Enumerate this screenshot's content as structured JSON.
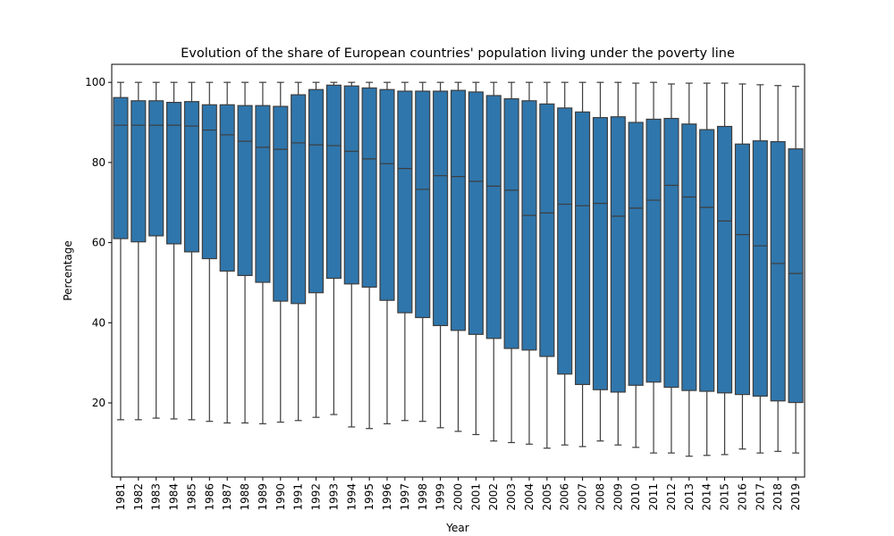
{
  "chart_data": {
    "type": "boxplot",
    "title": "Evolution of the share of European countries' population living under the poverty line",
    "xlabel": "Year",
    "ylabel": "Percentage",
    "ylim": [
      1.5,
      104.5
    ],
    "yticks": [
      20,
      40,
      60,
      80,
      100
    ],
    "grid": false,
    "box_color": "#2f76ac",
    "line_color": "#3d3d3d",
    "categories": [
      "1981",
      "1982",
      "1983",
      "1984",
      "1985",
      "1986",
      "1987",
      "1988",
      "1989",
      "1990",
      "1991",
      "1992",
      "1993",
      "1994",
      "1995",
      "1996",
      "1997",
      "1998",
      "1999",
      "2000",
      "2001",
      "2002",
      "2003",
      "2004",
      "2005",
      "2006",
      "2007",
      "2008",
      "2009",
      "2010",
      "2011",
      "2012",
      "2013",
      "2014",
      "2015",
      "2016",
      "2017",
      "2018",
      "2019"
    ],
    "boxes": [
      {
        "min": 15.8,
        "q1": 61.0,
        "median": 89.3,
        "q3": 96.2,
        "max": 100.0
      },
      {
        "min": 15.8,
        "q1": 60.2,
        "median": 89.3,
        "q3": 95.4,
        "max": 100.0
      },
      {
        "min": 16.2,
        "q1": 61.7,
        "median": 89.3,
        "q3": 95.4,
        "max": 100.0
      },
      {
        "min": 16.0,
        "q1": 59.7,
        "median": 89.3,
        "q3": 95.0,
        "max": 100.0
      },
      {
        "min": 15.8,
        "q1": 57.7,
        "median": 89.1,
        "q3": 95.2,
        "max": 100.0
      },
      {
        "min": 15.4,
        "q1": 56.0,
        "median": 88.1,
        "q3": 94.4,
        "max": 100.0
      },
      {
        "min": 15.0,
        "q1": 52.9,
        "median": 86.9,
        "q3": 94.4,
        "max": 100.0
      },
      {
        "min": 15.0,
        "q1": 51.8,
        "median": 85.3,
        "q3": 94.2,
        "max": 100.0
      },
      {
        "min": 14.8,
        "q1": 50.1,
        "median": 83.8,
        "q3": 94.2,
        "max": 100.0
      },
      {
        "min": 15.2,
        "q1": 45.4,
        "median": 83.3,
        "q3": 94.0,
        "max": 100.0
      },
      {
        "min": 15.6,
        "q1": 44.8,
        "median": 84.9,
        "q3": 96.9,
        "max": 100.0
      },
      {
        "min": 16.4,
        "q1": 47.5,
        "median": 84.4,
        "q3": 98.2,
        "max": 100.0
      },
      {
        "min": 17.1,
        "q1": 51.1,
        "median": 84.2,
        "q3": 99.3,
        "max": 100.0
      },
      {
        "min": 14.0,
        "q1": 49.7,
        "median": 82.8,
        "q3": 99.1,
        "max": 100.0
      },
      {
        "min": 13.6,
        "q1": 48.9,
        "median": 80.9,
        "q3": 98.6,
        "max": 100.0
      },
      {
        "min": 14.8,
        "q1": 45.6,
        "median": 79.7,
        "q3": 98.2,
        "max": 100.0
      },
      {
        "min": 15.6,
        "q1": 42.5,
        "median": 78.5,
        "q3": 97.8,
        "max": 100.0
      },
      {
        "min": 15.4,
        "q1": 41.3,
        "median": 73.3,
        "q3": 97.8,
        "max": 100.0
      },
      {
        "min": 13.8,
        "q1": 39.3,
        "median": 76.7,
        "q3": 97.8,
        "max": 100.0
      },
      {
        "min": 12.9,
        "q1": 38.1,
        "median": 76.5,
        "q3": 98.0,
        "max": 100.0
      },
      {
        "min": 12.1,
        "q1": 37.1,
        "median": 75.3,
        "q3": 97.6,
        "max": 100.0
      },
      {
        "min": 10.5,
        "q1": 36.1,
        "median": 74.1,
        "q3": 96.7,
        "max": 100.0
      },
      {
        "min": 10.1,
        "q1": 33.6,
        "median": 73.1,
        "q3": 95.9,
        "max": 100.0
      },
      {
        "min": 9.7,
        "q1": 33.2,
        "median": 66.8,
        "q3": 95.4,
        "max": 100.0
      },
      {
        "min": 8.7,
        "q1": 31.6,
        "median": 67.4,
        "q3": 94.6,
        "max": 100.0
      },
      {
        "min": 9.5,
        "q1": 27.2,
        "median": 69.6,
        "q3": 93.6,
        "max": 100.0
      },
      {
        "min": 9.1,
        "q1": 24.6,
        "median": 69.2,
        "q3": 92.6,
        "max": 100.0
      },
      {
        "min": 10.5,
        "q1": 23.3,
        "median": 69.8,
        "q3": 91.2,
        "max": 100.0
      },
      {
        "min": 9.5,
        "q1": 22.7,
        "median": 66.6,
        "q3": 91.4,
        "max": 100.0
      },
      {
        "min": 8.9,
        "q1": 24.4,
        "median": 68.6,
        "q3": 90.0,
        "max": 99.8
      },
      {
        "min": 7.5,
        "q1": 25.2,
        "median": 70.6,
        "q3": 90.8,
        "max": 100.0
      },
      {
        "min": 7.5,
        "q1": 23.9,
        "median": 74.3,
        "q3": 91.0,
        "max": 99.6
      },
      {
        "min": 6.7,
        "q1": 23.1,
        "median": 71.4,
        "q3": 89.6,
        "max": 99.8
      },
      {
        "min": 6.9,
        "q1": 22.9,
        "median": 68.8,
        "q3": 88.2,
        "max": 99.8
      },
      {
        "min": 7.1,
        "q1": 22.5,
        "median": 65.4,
        "q3": 89.0,
        "max": 99.8
      },
      {
        "min": 8.5,
        "q1": 22.1,
        "median": 62.0,
        "q3": 84.6,
        "max": 99.6
      },
      {
        "min": 7.5,
        "q1": 21.7,
        "median": 59.2,
        "q3": 85.4,
        "max": 99.4
      },
      {
        "min": 7.9,
        "q1": 20.5,
        "median": 54.8,
        "q3": 85.2,
        "max": 99.2
      },
      {
        "min": 7.5,
        "q1": 20.1,
        "median": 52.3,
        "q3": 83.4,
        "max": 99.0
      }
    ]
  }
}
